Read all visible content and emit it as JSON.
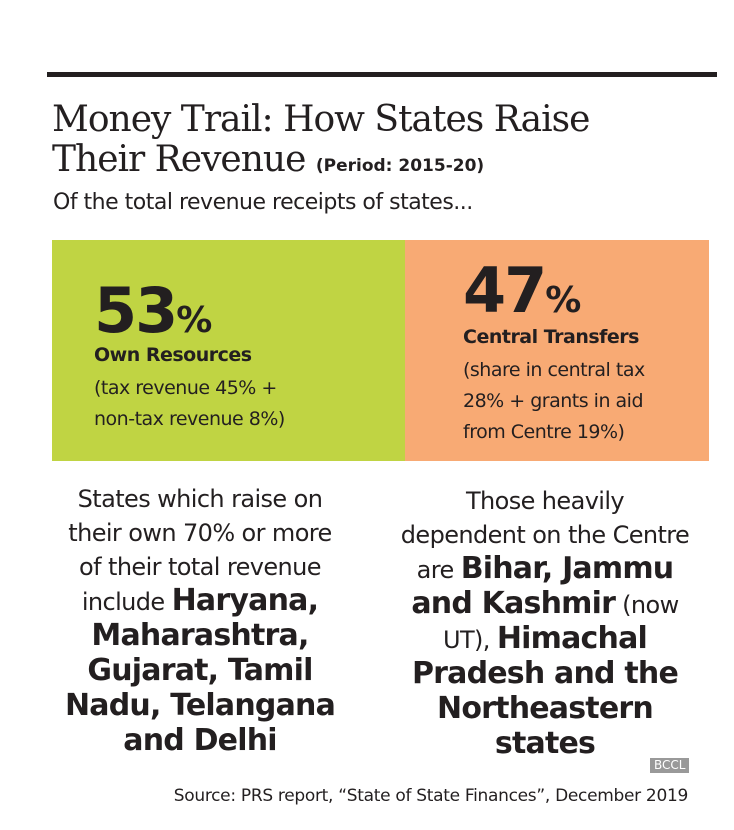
{
  "title": {
    "line1": "Money Trail: How States Raise",
    "line2": "Their Revenue",
    "period": "(Period: 2015-20)"
  },
  "subtitle": "Of the total revenue receipts of states...",
  "colors": {
    "own": "#c0d443",
    "central": "#f8aa74"
  },
  "own": {
    "value": "53",
    "unit": "%",
    "label": "Own Resources",
    "desc1": "(tax revenue 45% +",
    "desc2": "non-tax revenue 8%)"
  },
  "central": {
    "value": "47",
    "unit": "%",
    "label": "Central Transfers",
    "desc1": "(share in central tax",
    "desc2": "28% + grants in aid",
    "desc3": "from Centre 19%)"
  },
  "left": {
    "l1": "States which raise on",
    "l2": "their own 70% or more",
    "l3": "of their total revenue",
    "l4a": "include ",
    "l4b": "Haryana,",
    "l5": "Maharashtra,",
    "l6": "Gujarat, Tamil",
    "l7": "Nadu, Telangana",
    "l8": "and Delhi"
  },
  "right": {
    "l1": "Those heavily",
    "l2": "dependent on the Centre",
    "l3a": "are ",
    "l3b": "Bihar, Jammu",
    "l4a": "and Kashmir",
    "l4b": " (now",
    "l5a": "UT), ",
    "l5b": "Himachal",
    "l6": "Pradesh and the",
    "l7": "Northeastern",
    "l8": "states"
  },
  "source": "Source: PRS report, “State of State Finances”, December 2019",
  "watermark": "BCCL"
}
